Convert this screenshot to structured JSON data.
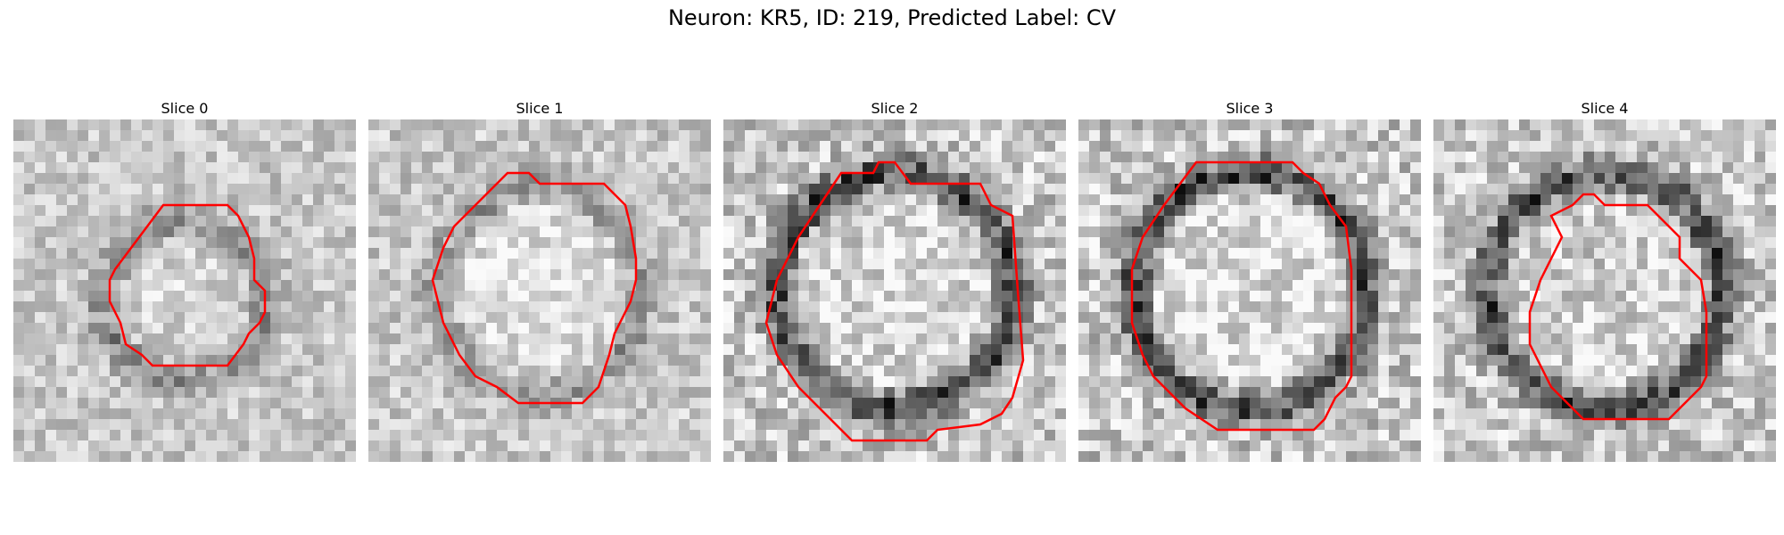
{
  "figure": {
    "title": "Neuron: KR5, ID: 219, Predicted Label: CV",
    "contour_color": "#ff0000"
  },
  "panels": [
    {
      "title": "Slice 0",
      "seed": 11,
      "contrast": 0.65,
      "ring_darkness": 0.22,
      "inner_brightness": 0.1
    },
    {
      "title": "Slice 1",
      "seed": 23,
      "contrast": 0.7,
      "ring_darkness": 0.18,
      "inner_brightness": 0.18
    },
    {
      "title": "Slice 2",
      "seed": 37,
      "contrast": 0.95,
      "ring_darkness": 0.5,
      "inner_brightness": 0.15
    },
    {
      "title": "Slice 3",
      "seed": 49,
      "contrast": 0.95,
      "ring_darkness": 0.48,
      "inner_brightness": 0.18
    },
    {
      "title": "Slice 4",
      "seed": 61,
      "contrast": 0.9,
      "ring_darkness": 0.45,
      "inner_brightness": 0.08
    }
  ]
}
